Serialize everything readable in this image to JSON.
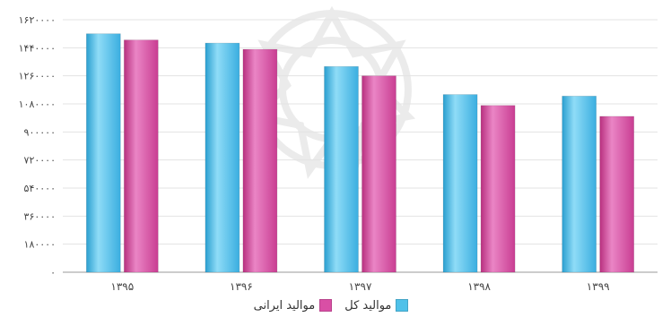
{
  "chart_data": {
    "type": "bar",
    "categories": [
      "۱۳۹۵",
      "۱۳۹۶",
      "۱۳۹۷",
      "۱۳۹۸",
      "۱۳۹۹"
    ],
    "series": [
      {
        "name": "موالید کل",
        "color": "#4fc1e9",
        "values": [
          153000,
          147000,
          132000,
          114000,
          113000
        ]
      },
      {
        "name": "موالید ایرانی",
        "color": "#d94fa5",
        "values": [
          149000,
          143000,
          126000,
          107000,
          100000
        ]
      }
    ],
    "yticks": [
      "۰",
      "۱۸۰۰۰۰",
      "۳۶۰۰۰۰",
      "۵۴۰۰۰۰",
      "۷۲۰۰۰۰",
      "۹۰۰۰۰۰",
      "۱۰۸۰۰۰۰",
      "۱۲۶۰۰۰۰",
      "۱۴۴۰۰۰۰",
      "۱۶۲۰۰۰۰"
    ],
    "ylim": [
      0,
      162000
    ],
    "grid": true,
    "legend": "bottom-center"
  }
}
